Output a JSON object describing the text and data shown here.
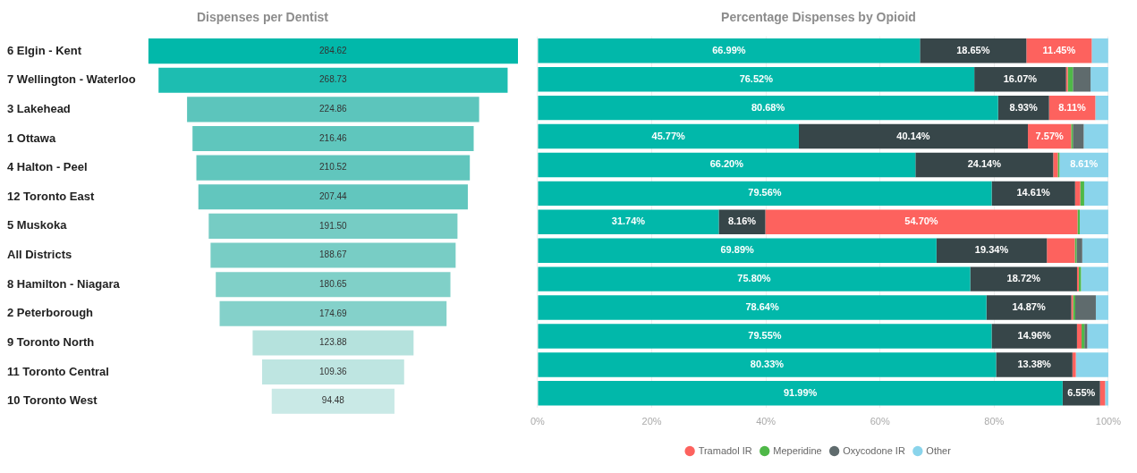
{
  "chart_data": [
    {
      "type": "other",
      "title": "Dispenses per Dentist",
      "categories": [
        "6 Elgin - Kent",
        "7 Wellington - Waterloo",
        "3 Lakehead",
        "1 Ottawa",
        "4 Halton - Peel",
        "12 Toronto East",
        "5 Muskoka",
        "All Districts",
        "8 Hamilton - Niagara",
        "2 Peterborough",
        "9 Toronto North",
        "11 Toronto Central",
        "10 Toronto West"
      ],
      "values": [
        284.62,
        268.73,
        224.86,
        216.46,
        210.52,
        207.44,
        191.5,
        188.67,
        180.65,
        174.69,
        123.88,
        109.36,
        94.48
      ],
      "colors": [
        "#01b8aa",
        "#1dbdb1",
        "#5cc5bc",
        "#5fc6bd",
        "#61c6bd",
        "#62c6be",
        "#76ccc4",
        "#78cdc5",
        "#80d0c8",
        "#84d1ca",
        "#b5e2dd",
        "#bee5e1",
        "#c9e9e6"
      ],
      "value_labels": [
        "284.62",
        "268.73",
        "224.86",
        "216.46",
        "210.52",
        "207.44",
        "191.50",
        "188.67",
        "180.65",
        "174.69",
        "123.88",
        "109.36",
        "94.48"
      ]
    },
    {
      "type": "bar",
      "orientation": "horizontal",
      "stacked": true,
      "title": "Percentage Dispenses by Opioid",
      "categories": [
        null,
        null,
        null,
        null,
        null,
        null,
        null,
        null,
        null,
        null,
        null,
        null,
        null
      ],
      "xlim": [
        0,
        100
      ],
      "xticks": [
        {
          "value": 0,
          "label": "0%"
        },
        {
          "value": 20,
          "label": "20%"
        },
        {
          "value": 40,
          "label": "40%"
        },
        {
          "value": 60,
          "label": "60%"
        },
        {
          "value": 80,
          "label": "80%"
        },
        {
          "value": 100,
          "label": "100%"
        }
      ],
      "grid": "x",
      "legend": "bottom",
      "tick_labels": "x",
      "series": [
        {
          "color": "#01b8aa",
          "values": [
            66.99,
            76.52,
            80.68,
            45.77,
            66.2,
            79.56,
            31.74,
            69.89,
            75.8,
            78.64,
            79.55,
            80.33,
            91.99
          ],
          "value_labels": [
            "66.99%",
            "76.52%",
            "80.68%",
            "45.77%",
            "66.20%",
            "79.56%",
            "31.74%",
            "69.89%",
            "75.80%",
            "78.64%",
            "79.55%",
            "80.33%",
            "91.99%"
          ]
        },
        {
          "color": "#374649",
          "values": [
            18.65,
            16.07,
            8.93,
            40.14,
            24.14,
            14.61,
            8.16,
            19.34,
            18.72,
            14.87,
            14.96,
            13.38,
            6.55
          ],
          "value_labels": [
            "18.65%",
            "16.07%",
            "8.93%",
            "40.14%",
            "24.14%",
            "14.61%",
            "8.16%",
            "19.34%",
            "18.72%",
            "14.87%",
            "14.96%",
            "13.38%",
            "6.55%"
          ]
        },
        {
          "name": "Tramadol IR",
          "color": "#fd625e",
          "values": [
            11.45,
            0.3,
            8.11,
            7.57,
            0.8,
            0.9,
            54.7,
            4.9,
            0.3,
            0.3,
            0.8,
            0.6,
            0.9
          ],
          "value_labels": [
            "11.45%",
            null,
            "8.11%",
            "7.57%",
            null,
            null,
            "54.70%",
            null,
            null,
            null,
            null,
            null,
            null
          ]
        },
        {
          "name": "Meperidine",
          "color": "#4fb848",
          "values": [
            0,
            0.9,
            0,
            0.3,
            0.3,
            0.7,
            0.4,
            0.3,
            0.4,
            0.4,
            0.5,
            0,
            0
          ]
        },
        {
          "name": "Oxycodone IR",
          "color": "#5f6b6d",
          "values": [
            0,
            3.1,
            0,
            1.9,
            0,
            0,
            0,
            1.0,
            0,
            3.6,
            0.5,
            0,
            0
          ]
        },
        {
          "name": "Other",
          "color": "#8ad4eb",
          "values": [
            2.9,
            3.1,
            2.3,
            4.3,
            8.61,
            4.2,
            5.0,
            4.6,
            4.8,
            2.2,
            3.7,
            5.7,
            0.6
          ],
          "value_labels": [
            null,
            null,
            null,
            null,
            "8.61%",
            null,
            null,
            null,
            null,
            null,
            null,
            null,
            null
          ]
        }
      ]
    }
  ]
}
